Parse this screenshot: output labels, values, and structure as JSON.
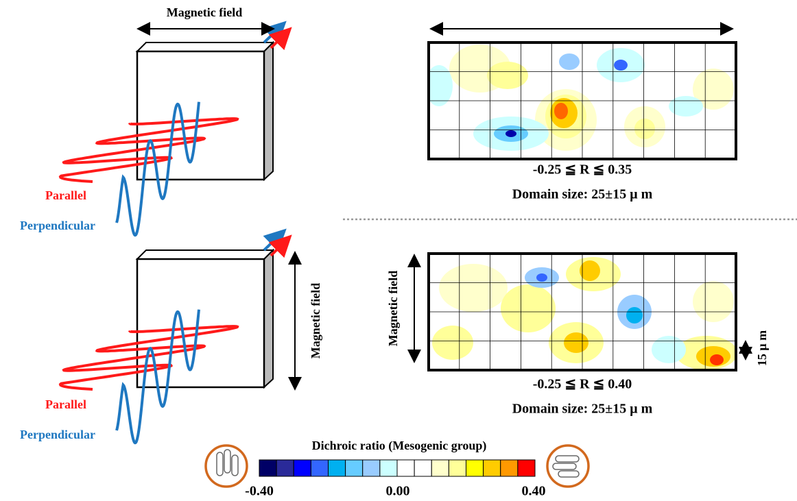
{
  "panels": [
    {
      "field_label": "Magnetic field",
      "parallel": "Parallel",
      "perpendicular": "Perpendicular",
      "range": "-0.25 ≦ R ≦ 0.35",
      "domain_size": "Domain size: 25±15 μ m"
    },
    {
      "field_label": "Magnetic field",
      "map_field_label": "Magnetic field",
      "parallel": "Parallel",
      "perpendicular": "Perpendicular",
      "range": "-0.25 ≦ R ≦ 0.40",
      "domain_size": "Domain size: 25±15 μ m",
      "scale": "15 μ m"
    }
  ],
  "colorbar": {
    "title": "Dichroic ratio (Mesogenic group)",
    "colors": [
      "#000066",
      "#2a2a99",
      "#0000ff",
      "#3366ff",
      "#00b0f0",
      "#66ccff",
      "#99ccff",
      "#ccffff",
      "#ffffff",
      "#ffffff",
      "#ffffcc",
      "#ffff99",
      "#ffff00",
      "#ffcc00",
      "#ff9900",
      "#ff0000"
    ],
    "ticks": [
      "-0.40",
      "0.00",
      "0.40"
    ]
  }
}
